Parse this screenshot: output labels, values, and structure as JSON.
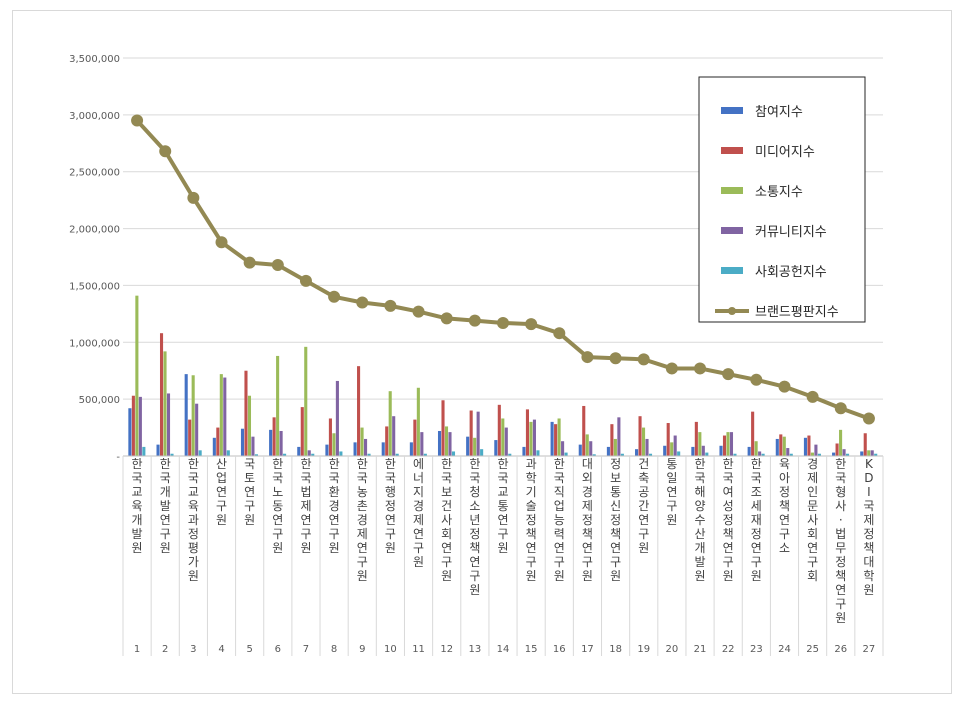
{
  "chart_data": {
    "type": "bar",
    "title": "",
    "xlabel": "",
    "ylabel": "",
    "ylim": [
      0,
      3500000
    ],
    "yticks": [
      0,
      500000,
      1000000,
      1500000,
      2000000,
      2500000,
      3000000,
      3500000
    ],
    "ytick_labels": [
      "-",
      "500,000",
      "1,000,000",
      "1,500,000",
      "2,000,000",
      "2,500,000",
      "3,000,000",
      "3,500,000"
    ],
    "grid": true,
    "legend_position": "top-right",
    "ranks": [
      "1",
      "2",
      "3",
      "4",
      "5",
      "6",
      "7",
      "8",
      "9",
      "10",
      "11",
      "12",
      "13",
      "14",
      "15",
      "16",
      "17",
      "18",
      "19",
      "20",
      "21",
      "22",
      "23",
      "24",
      "25",
      "26",
      "27"
    ],
    "categories": [
      "한국교육개발원",
      "한국개발연구원",
      "한국교육과정평가원",
      "산업연구원",
      "국토연구원",
      "한국노동연구원",
      "한국법제연구원",
      "한국환경연구원",
      "한국농촌경제연구원",
      "한국행정연구원",
      "에너지경제연구원",
      "한국보건사회연구원",
      "한국청소년정책연구원",
      "한국교통연구원",
      "과학기술정책연구원",
      "한국직업능력연구원",
      "대외경제정책연구원",
      "정보통신정책연구원",
      "건축공간연구원",
      "통일연구원",
      "한국해양수산개발원",
      "한국여성정책연구원",
      "한국조세재정연구원",
      "육아정책연구소",
      "경제인문사회연구회",
      "한국형사·법무정책연구원",
      "KDI국제정책대학원"
    ],
    "series": [
      {
        "name": "참여지수",
        "type": "bar",
        "color": "#4472c4",
        "values": [
          420000,
          100000,
          720000,
          160000,
          240000,
          230000,
          80000,
          100000,
          120000,
          120000,
          120000,
          220000,
          170000,
          140000,
          80000,
          300000,
          100000,
          80000,
          60000,
          90000,
          80000,
          90000,
          80000,
          150000,
          160000,
          30000,
          40000
        ]
      },
      {
        "name": "미디어지수",
        "type": "bar",
        "color": "#c0504d",
        "values": [
          530000,
          1080000,
          320000,
          250000,
          750000,
          340000,
          430000,
          330000,
          790000,
          260000,
          320000,
          490000,
          400000,
          450000,
          410000,
          280000,
          440000,
          280000,
          350000,
          290000,
          300000,
          180000,
          390000,
          190000,
          180000,
          110000,
          200000
        ]
      },
      {
        "name": "소통지수",
        "type": "bar",
        "color": "#9bbb59",
        "values": [
          1410000,
          920000,
          710000,
          720000,
          530000,
          880000,
          960000,
          200000,
          250000,
          570000,
          600000,
          260000,
          160000,
          330000,
          300000,
          330000,
          190000,
          150000,
          250000,
          120000,
          210000,
          210000,
          130000,
          170000,
          30000,
          230000,
          50000
        ]
      },
      {
        "name": "커뮤니티지수",
        "type": "bar",
        "color": "#8064a2",
        "values": [
          520000,
          550000,
          460000,
          690000,
          170000,
          220000,
          50000,
          660000,
          150000,
          350000,
          210000,
          210000,
          390000,
          250000,
          320000,
          130000,
          130000,
          340000,
          150000,
          180000,
          90000,
          210000,
          40000,
          70000,
          100000,
          60000,
          50000
        ]
      },
      {
        "name": "사회공헌지수",
        "type": "bar",
        "color": "#4bacc6",
        "values": [
          80000,
          20000,
          50000,
          50000,
          15000,
          20000,
          20000,
          40000,
          20000,
          20000,
          20000,
          40000,
          60000,
          20000,
          50000,
          30000,
          15000,
          20000,
          20000,
          40000,
          30000,
          20000,
          20000,
          20000,
          20000,
          20000,
          20000
        ]
      },
      {
        "name": "브랜드평판지수",
        "type": "line",
        "color": "#938953",
        "values": [
          2950000,
          2680000,
          2270000,
          1880000,
          1700000,
          1680000,
          1540000,
          1400000,
          1350000,
          1320000,
          1270000,
          1210000,
          1190000,
          1170000,
          1160000,
          1080000,
          870000,
          860000,
          850000,
          770000,
          770000,
          720000,
          670000,
          610000,
          520000,
          420000,
          330000
        ]
      }
    ]
  }
}
